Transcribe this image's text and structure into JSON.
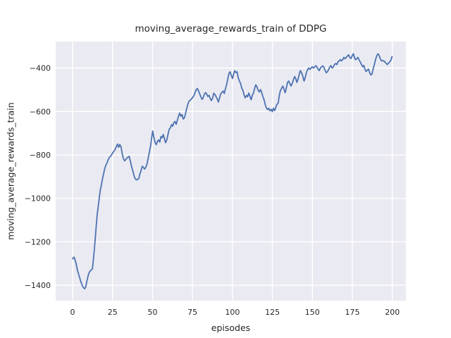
{
  "chart_data": {
    "type": "line",
    "title": "moving_average_rewards_train of DDPG",
    "xlabel": "episodes",
    "ylabel": "moving_average_rewards_train",
    "series_name": "moving average rewards (train)",
    "legend": false,
    "grid": true,
    "xlim": [
      -10.6,
      208.5
    ],
    "ylim": [
      -1471,
      -278
    ],
    "x_ticks": [
      0,
      25,
      50,
      75,
      100,
      125,
      150,
      175,
      200
    ],
    "x_tick_labels": [
      "0",
      "25",
      "50",
      "75",
      "100",
      "125",
      "150",
      "175",
      "200"
    ],
    "y_ticks": [
      -400,
      -600,
      -800,
      -1000,
      -1200,
      -1400
    ],
    "y_tick_labels": [
      "−400",
      "−600",
      "−800",
      "−1000",
      "−1200",
      "−1400"
    ],
    "line_color": "#4c72b0",
    "axes_bg_color": "#eaeaf2",
    "grid_color": "#ffffff",
    "text_color": "#262626",
    "points": [
      [
        0,
        -1278
      ],
      [
        1,
        -1271
      ],
      [
        1.6,
        -1286
      ],
      [
        2.2,
        -1300
      ],
      [
        3,
        -1330
      ],
      [
        4,
        -1355
      ],
      [
        5,
        -1380
      ],
      [
        6,
        -1401
      ],
      [
        7,
        -1413
      ],
      [
        7.6,
        -1416
      ],
      [
        8.2,
        -1408
      ],
      [
        9,
        -1378
      ],
      [
        10,
        -1348
      ],
      [
        10.8,
        -1336
      ],
      [
        11.6,
        -1330
      ],
      [
        12.4,
        -1324
      ],
      [
        13,
        -1282
      ],
      [
        13.6,
        -1235
      ],
      [
        14.2,
        -1180
      ],
      [
        14.8,
        -1125
      ],
      [
        15.4,
        -1072
      ],
      [
        16,
        -1040
      ],
      [
        16.6,
        -1003
      ],
      [
        17.2,
        -966
      ],
      [
        18,
        -938
      ],
      [
        18.6,
        -913
      ],
      [
        19.3,
        -890
      ],
      [
        20,
        -866
      ],
      [
        20.7,
        -849
      ],
      [
        21.5,
        -837
      ],
      [
        22.2,
        -823
      ],
      [
        23,
        -812
      ],
      [
        23.7,
        -806
      ],
      [
        24.4,
        -799
      ],
      [
        25.1,
        -790
      ],
      [
        25.9,
        -782
      ],
      [
        26.6,
        -775
      ],
      [
        27.3,
        -762
      ],
      [
        28.1,
        -750
      ],
      [
        28.8,
        -765
      ],
      [
        29.5,
        -752
      ],
      [
        30.3,
        -764
      ],
      [
        31,
        -794
      ],
      [
        31.7,
        -816
      ],
      [
        32.5,
        -827
      ],
      [
        33.2,
        -822
      ],
      [
        34,
        -814
      ],
      [
        34.7,
        -810
      ],
      [
        35.4,
        -806
      ],
      [
        36.2,
        -831
      ],
      [
        36.9,
        -854
      ],
      [
        37.7,
        -874
      ],
      [
        38.4,
        -896
      ],
      [
        39.1,
        -909
      ],
      [
        39.9,
        -915
      ],
      [
        40.6,
        -913
      ],
      [
        41.4,
        -908
      ],
      [
        42.1,
        -888
      ],
      [
        42.8,
        -873
      ],
      [
        43.6,
        -852
      ],
      [
        44.3,
        -857
      ],
      [
        45,
        -865
      ],
      [
        45.8,
        -857
      ],
      [
        46.5,
        -843
      ],
      [
        47.2,
        -818
      ],
      [
        48,
        -788
      ],
      [
        48.7,
        -762
      ],
      [
        49.4,
        -724
      ],
      [
        50.1,
        -690
      ],
      [
        50.8,
        -719
      ],
      [
        51.6,
        -742
      ],
      [
        52.3,
        -753
      ],
      [
        53.1,
        -737
      ],
      [
        53.8,
        -731
      ],
      [
        54.5,
        -741
      ],
      [
        55.3,
        -715
      ],
      [
        56,
        -721
      ],
      [
        56.7,
        -706
      ],
      [
        57.5,
        -727
      ],
      [
        58.2,
        -744
      ],
      [
        58.9,
        -731
      ],
      [
        59.7,
        -704
      ],
      [
        60.4,
        -682
      ],
      [
        61.1,
        -676
      ],
      [
        61.9,
        -661
      ],
      [
        62.6,
        -668
      ],
      [
        63.3,
        -652
      ],
      [
        64.1,
        -646
      ],
      [
        64.8,
        -659
      ],
      [
        65.5,
        -641
      ],
      [
        66.3,
        -621
      ],
      [
        67,
        -607
      ],
      [
        67.7,
        -622
      ],
      [
        68.5,
        -614
      ],
      [
        69.2,
        -635
      ],
      [
        70,
        -628
      ],
      [
        70.7,
        -608
      ],
      [
        71.4,
        -585
      ],
      [
        72.2,
        -564
      ],
      [
        72.9,
        -552
      ],
      [
        73.6,
        -548
      ],
      [
        74.4,
        -542
      ],
      [
        75.1,
        -535
      ],
      [
        75.8,
        -528
      ],
      [
        76.6,
        -513
      ],
      [
        77.3,
        -500
      ],
      [
        78,
        -494
      ],
      [
        78.8,
        -506
      ],
      [
        79.5,
        -519
      ],
      [
        80.2,
        -532
      ],
      [
        81,
        -544
      ],
      [
        81.7,
        -536
      ],
      [
        82.4,
        -520
      ],
      [
        83.2,
        -513
      ],
      [
        83.9,
        -520
      ],
      [
        84.6,
        -531
      ],
      [
        85.4,
        -526
      ],
      [
        86.1,
        -541
      ],
      [
        86.8,
        -550
      ],
      [
        87.6,
        -538
      ],
      [
        88.3,
        -516
      ],
      [
        89,
        -521
      ],
      [
        89.8,
        -532
      ],
      [
        90.5,
        -543
      ],
      [
        91.2,
        -556
      ],
      [
        92,
        -536
      ],
      [
        92.7,
        -519
      ],
      [
        93.4,
        -512
      ],
      [
        94.2,
        -506
      ],
      [
        94.9,
        -517
      ],
      [
        95.6,
        -495
      ],
      [
        96.4,
        -475
      ],
      [
        97.1,
        -449
      ],
      [
        97.8,
        -425
      ],
      [
        98.5,
        -417
      ],
      [
        99.2,
        -433
      ],
      [
        100,
        -448
      ],
      [
        100.7,
        -428
      ],
      [
        101.4,
        -412
      ],
      [
        102.2,
        -421
      ],
      [
        102.9,
        -417
      ],
      [
        103.6,
        -444
      ],
      [
        104.4,
        -461
      ],
      [
        105.1,
        -472
      ],
      [
        105.8,
        -492
      ],
      [
        106.6,
        -505
      ],
      [
        107.3,
        -524
      ],
      [
        108,
        -537
      ],
      [
        108.8,
        -526
      ],
      [
        109.5,
        -532
      ],
      [
        110.2,
        -515
      ],
      [
        111,
        -531
      ],
      [
        111.7,
        -546
      ],
      [
        112.4,
        -526
      ],
      [
        113.2,
        -514
      ],
      [
        113.9,
        -493
      ],
      [
        114.6,
        -477
      ],
      [
        115.4,
        -488
      ],
      [
        116.1,
        -503
      ],
      [
        116.8,
        -510
      ],
      [
        117.6,
        -499
      ],
      [
        118.3,
        -513
      ],
      [
        119,
        -531
      ],
      [
        119.8,
        -547
      ],
      [
        120.5,
        -568
      ],
      [
        121.2,
        -584
      ],
      [
        122,
        -591
      ],
      [
        122.7,
        -585
      ],
      [
        123.4,
        -597
      ],
      [
        124.2,
        -590
      ],
      [
        124.9,
        -601
      ],
      [
        125.6,
        -585
      ],
      [
        126.4,
        -596
      ],
      [
        127.1,
        -580
      ],
      [
        127.8,
        -568
      ],
      [
        128.6,
        -561
      ],
      [
        129.3,
        -526
      ],
      [
        130,
        -504
      ],
      [
        130.8,
        -493
      ],
      [
        131.5,
        -483
      ],
      [
        132.3,
        -498
      ],
      [
        133,
        -514
      ],
      [
        133.7,
        -492
      ],
      [
        134.5,
        -466
      ],
      [
        135.2,
        -460
      ],
      [
        135.9,
        -471
      ],
      [
        136.7,
        -483
      ],
      [
        137.4,
        -471
      ],
      [
        138.1,
        -455
      ],
      [
        138.9,
        -439
      ],
      [
        139.6,
        -449
      ],
      [
        140.3,
        -466
      ],
      [
        141.1,
        -449
      ],
      [
        141.8,
        -428
      ],
      [
        142.5,
        -412
      ],
      [
        143.3,
        -422
      ],
      [
        144,
        -438
      ],
      [
        144.8,
        -460
      ],
      [
        145.5,
        -444
      ],
      [
        146.2,
        -422
      ],
      [
        147,
        -407
      ],
      [
        147.7,
        -400
      ],
      [
        148.4,
        -406
      ],
      [
        149.2,
        -400
      ],
      [
        149.9,
        -394
      ],
      [
        150.6,
        -400
      ],
      [
        151.4,
        -395
      ],
      [
        152.1,
        -389
      ],
      [
        152.8,
        -395
      ],
      [
        153.6,
        -406
      ],
      [
        154.3,
        -412
      ],
      [
        155,
        -400
      ],
      [
        155.8,
        -394
      ],
      [
        156.5,
        -390
      ],
      [
        157.2,
        -396
      ],
      [
        158,
        -411
      ],
      [
        158.7,
        -422
      ],
      [
        159.4,
        -417
      ],
      [
        160.2,
        -406
      ],
      [
        160.9,
        -395
      ],
      [
        161.6,
        -389
      ],
      [
        162.4,
        -400
      ],
      [
        163.1,
        -395
      ],
      [
        163.8,
        -384
      ],
      [
        164.6,
        -379
      ],
      [
        165.3,
        -384
      ],
      [
        166,
        -371
      ],
      [
        166.8,
        -367
      ],
      [
        167.5,
        -361
      ],
      [
        168.2,
        -367
      ],
      [
        169,
        -361
      ],
      [
        169.7,
        -351
      ],
      [
        170.4,
        -357
      ],
      [
        171.2,
        -351
      ],
      [
        171.9,
        -345
      ],
      [
        172.6,
        -339
      ],
      [
        173.4,
        -351
      ],
      [
        174.1,
        -356
      ],
      [
        174.8,
        -345
      ],
      [
        175.6,
        -334
      ],
      [
        176.3,
        -351
      ],
      [
        177,
        -362
      ],
      [
        177.8,
        -356
      ],
      [
        178.5,
        -351
      ],
      [
        179.2,
        -362
      ],
      [
        180,
        -373
      ],
      [
        180.7,
        -383
      ],
      [
        181.4,
        -394
      ],
      [
        182.2,
        -388
      ],
      [
        182.9,
        -405
      ],
      [
        183.6,
        -416
      ],
      [
        184.4,
        -410
      ],
      [
        185.1,
        -404
      ],
      [
        185.8,
        -421
      ],
      [
        186.6,
        -432
      ],
      [
        187.3,
        -427
      ],
      [
        188,
        -405
      ],
      [
        188.8,
        -383
      ],
      [
        189.5,
        -361
      ],
      [
        190.2,
        -345
      ],
      [
        191,
        -334
      ],
      [
        191.7,
        -341
      ],
      [
        192.4,
        -356
      ],
      [
        193.2,
        -367
      ],
      [
        193.9,
        -366
      ],
      [
        194.6,
        -367
      ],
      [
        195.4,
        -372
      ],
      [
        196.1,
        -378
      ],
      [
        196.8,
        -384
      ],
      [
        197.6,
        -378
      ],
      [
        198.3,
        -371
      ],
      [
        199,
        -366
      ],
      [
        199.8,
        -347
      ]
    ]
  }
}
